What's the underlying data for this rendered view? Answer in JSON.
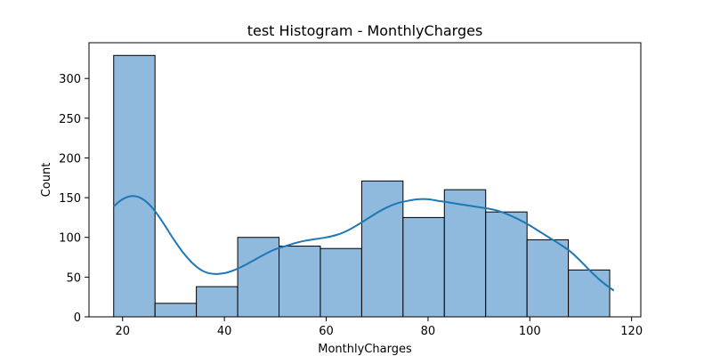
{
  "chart_data": {
    "type": "bar",
    "title": "test Histogram - MonthlyCharges",
    "xlabel": "MonthlyCharges",
    "ylabel": "Count",
    "xlim": [
      13.4,
      121.8
    ],
    "ylim": [
      0,
      345
    ],
    "xticks": [
      20,
      40,
      60,
      80,
      100,
      120
    ],
    "yticks": [
      0,
      50,
      100,
      150,
      200,
      250,
      300
    ],
    "bins": [
      {
        "start": 18.25,
        "end": 26.37,
        "count": 329
      },
      {
        "start": 26.37,
        "end": 34.49,
        "count": 17
      },
      {
        "start": 34.49,
        "end": 42.61,
        "count": 38
      },
      {
        "start": 42.61,
        "end": 50.73,
        "count": 100
      },
      {
        "start": 50.73,
        "end": 58.85,
        "count": 89
      },
      {
        "start": 58.85,
        "end": 66.97,
        "count": 86
      },
      {
        "start": 66.97,
        "end": 75.09,
        "count": 171
      },
      {
        "start": 75.09,
        "end": 83.21,
        "count": 125
      },
      {
        "start": 83.21,
        "end": 91.33,
        "count": 160
      },
      {
        "start": 91.33,
        "end": 99.45,
        "count": 132
      },
      {
        "start": 99.45,
        "end": 107.57,
        "count": 97
      },
      {
        "start": 107.57,
        "end": 115.69,
        "count": 59
      }
    ],
    "kde": {
      "x": [
        18.25,
        20,
        22,
        24,
        26,
        28,
        30,
        32,
        34,
        36,
        38,
        40,
        42,
        44,
        46,
        48,
        50,
        52,
        54,
        56,
        58,
        60,
        62,
        64,
        66,
        68,
        70,
        72,
        74,
        76,
        78,
        80,
        82,
        84,
        86,
        88,
        90,
        92,
        94,
        96,
        98,
        100,
        102,
        104,
        106,
        108,
        110,
        112,
        114,
        116.5
      ],
      "y": [
        139,
        148,
        152,
        148,
        136,
        118,
        98,
        80,
        66,
        57,
        54,
        55,
        59,
        65,
        72,
        79,
        85,
        89,
        93,
        96,
        98,
        100,
        103,
        108,
        115,
        123,
        131,
        138,
        143,
        146,
        148,
        148,
        146,
        144,
        142,
        140,
        138,
        136,
        133,
        128,
        122,
        115,
        107,
        99,
        91,
        82,
        70,
        57,
        45,
        33
      ]
    },
    "grid": false,
    "bar_color": "#8fbadd",
    "bar_edge_color": "#000000",
    "kde_color": "#1f77b4"
  }
}
